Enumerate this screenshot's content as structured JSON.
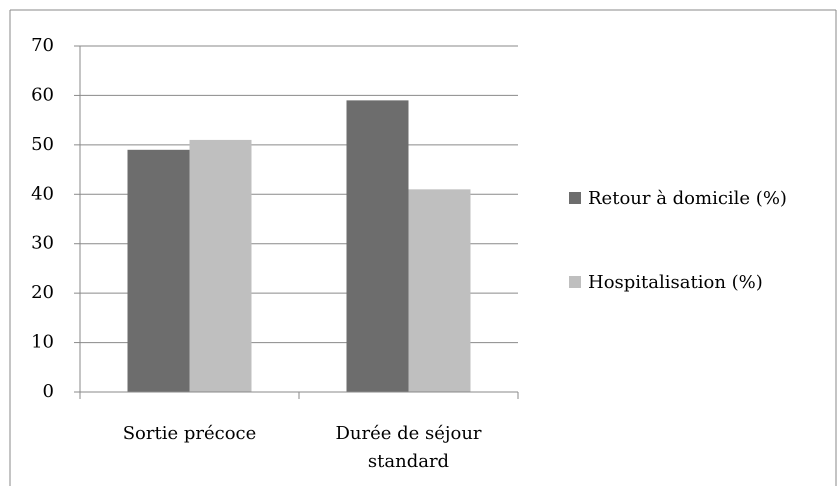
{
  "chart_data": {
    "type": "bar",
    "categories": [
      "Sortie précoce",
      "Durée de séjour standard"
    ],
    "series": [
      {
        "name": "Retour à domicile (%)",
        "color": "#6d6d6d",
        "values": [
          49,
          59
        ]
      },
      {
        "name": "Hospitalisation (%)",
        "color": "#bfbfbf",
        "values": [
          51,
          41
        ]
      }
    ],
    "ylim": [
      0,
      70
    ],
    "yticks": [
      0,
      10,
      20,
      30,
      40,
      50,
      60,
      70
    ],
    "grid": true,
    "legend": "right"
  }
}
